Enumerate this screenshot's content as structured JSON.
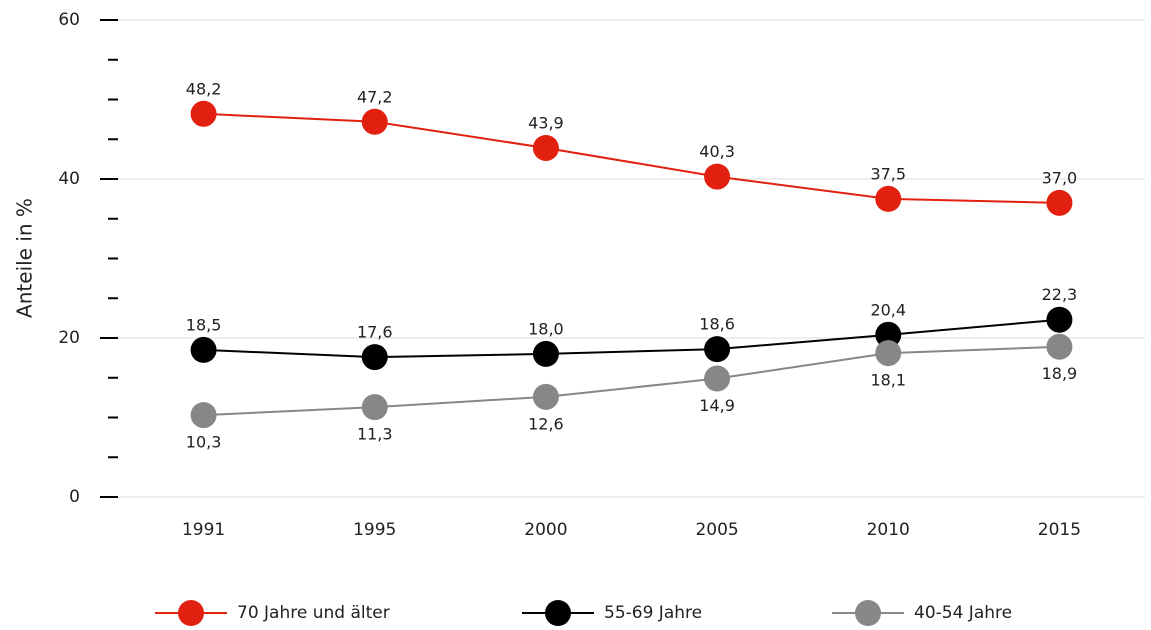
{
  "chart_data": {
    "type": "line",
    "y_label": "Anteile in %",
    "categories": [
      "1991",
      "1995",
      "2000",
      "2005",
      "2010",
      "2015"
    ],
    "series": [
      {
        "name": "70 Jahre und älter",
        "color": "#e2200f",
        "values": [
          48.2,
          47.2,
          43.9,
          40.3,
          37.5,
          37.0
        ],
        "value_labels": [
          "48,2",
          "47,2",
          "43,9",
          "40,3",
          "37,5",
          "37,0"
        ]
      },
      {
        "name": "55-69 Jahre",
        "color": "#000000",
        "values": [
          18.5,
          17.6,
          18.0,
          18.6,
          20.4,
          22.3
        ],
        "value_labels": [
          "18,5",
          "17,6",
          "18,0",
          "18,6",
          "20,4",
          "22,3"
        ]
      },
      {
        "name": "40-54 Jahre",
        "color": "#878787",
        "values": [
          10.3,
          11.3,
          12.6,
          14.9,
          18.1,
          18.9
        ],
        "value_labels": [
          "10,3",
          "11,3",
          "12,6",
          "14,9",
          "18,1",
          "18,9"
        ]
      }
    ],
    "ylim": [
      0,
      60
    ],
    "yticks": [
      0,
      20,
      40,
      60
    ],
    "yminorticks": [
      5,
      10,
      15,
      25,
      30,
      35,
      45,
      50,
      55
    ],
    "grid": true,
    "legend": "bottom"
  }
}
